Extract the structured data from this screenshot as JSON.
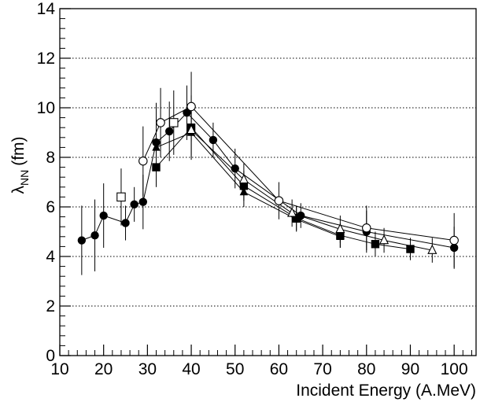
{
  "chart_data": {
    "type": "scatter",
    "xlabel": "Incident Energy (A.MeV)",
    "ylabel_symbol": "λ",
    "ylabel_subscript": "NN",
    "ylabel_unit": "(fm)",
    "xlim": [
      10,
      105
    ],
    "ylim": [
      0,
      14
    ],
    "x_ticks": [
      10,
      20,
      30,
      40,
      50,
      60,
      70,
      80,
      90,
      100
    ],
    "y_ticks": [
      0,
      2,
      4,
      6,
      8,
      10,
      12,
      14
    ],
    "grid": "horizontal dotted",
    "series": [
      {
        "marker": "filled-circle",
        "connected": true,
        "points": [
          {
            "x": 15,
            "y": 4.65,
            "err": 1.4
          },
          {
            "x": 18,
            "y": 4.85,
            "err": 1.45
          },
          {
            "x": 20,
            "y": 5.65,
            "err": 1.3
          },
          {
            "x": 25,
            "y": 5.35,
            "err": 0.7
          },
          {
            "x": 27,
            "y": 6.1,
            "err": 0.7
          },
          {
            "x": 29,
            "y": 6.2,
            "err": 1.1
          },
          {
            "x": 32,
            "y": 8.6,
            "err": 1.6
          },
          {
            "x": 35,
            "y": 9.05,
            "err": 1.2
          },
          {
            "x": 39,
            "y": 9.8,
            "err": 1.1
          },
          {
            "x": 45,
            "y": 8.7,
            "err": 0.7
          },
          {
            "x": 50,
            "y": 7.55,
            "err": 0.8
          },
          {
            "x": 65,
            "y": 5.65,
            "err": 0.5
          },
          {
            "x": 80,
            "y": 5.0,
            "err": 0.85
          },
          {
            "x": 100,
            "y": 4.35,
            "err": 0.85
          }
        ]
      },
      {
        "marker": "open-circle",
        "connected": true,
        "points": [
          {
            "x": 29,
            "y": 7.85,
            "err": 1.4
          },
          {
            "x": 33,
            "y": 9.4,
            "err": 1.4
          },
          {
            "x": 40,
            "y": 10.05,
            "err": 1.4
          },
          {
            "x": 60,
            "y": 6.25,
            "err": 0.75
          },
          {
            "x": 80,
            "y": 5.15,
            "err": 0.9
          },
          {
            "x": 100,
            "y": 4.65,
            "err": 1.1
          }
        ]
      },
      {
        "marker": "filled-square",
        "connected": true,
        "points": [
          {
            "x": 32,
            "y": 7.6,
            "err": 0.8
          },
          {
            "x": 40,
            "y": 9.2,
            "err": 1.3
          },
          {
            "x": 52,
            "y": 6.85,
            "err": 0.6
          },
          {
            "x": 64,
            "y": 5.55,
            "err": 0.5
          },
          {
            "x": 74,
            "y": 4.85,
            "err": 0.5
          },
          {
            "x": 82,
            "y": 4.5,
            "err": 0.5
          },
          {
            "x": 90,
            "y": 4.3,
            "err": 0.45
          }
        ]
      },
      {
        "marker": "filled-triangle",
        "connected": true,
        "points": [
          {
            "x": 32,
            "y": 8.4,
            "err": 0.9
          },
          {
            "x": 40,
            "y": 9.0,
            "err": 1.0
          },
          {
            "x": 52,
            "y": 6.6,
            "err": 0.6
          },
          {
            "x": 64,
            "y": 5.5,
            "err": 0.5
          },
          {
            "x": 74,
            "y": 4.8,
            "err": 0.45
          }
        ]
      },
      {
        "marker": "open-triangle",
        "connected": true,
        "points": [
          {
            "x": 40,
            "y": 9.1,
            "err": 1.0
          },
          {
            "x": 52,
            "y": 7.1,
            "err": 0.65
          },
          {
            "x": 63,
            "y": 5.75,
            "err": 0.55
          },
          {
            "x": 74,
            "y": 5.1,
            "err": 0.55
          },
          {
            "x": 84,
            "y": 4.65,
            "err": 0.5
          },
          {
            "x": 95,
            "y": 4.25,
            "err": 0.5
          }
        ]
      },
      {
        "marker": "open-square",
        "connected": false,
        "points": [
          {
            "x": 24,
            "y": 6.4,
            "err": 1.15
          },
          {
            "x": 36,
            "y": 9.4,
            "err": 1.3
          }
        ]
      }
    ]
  }
}
